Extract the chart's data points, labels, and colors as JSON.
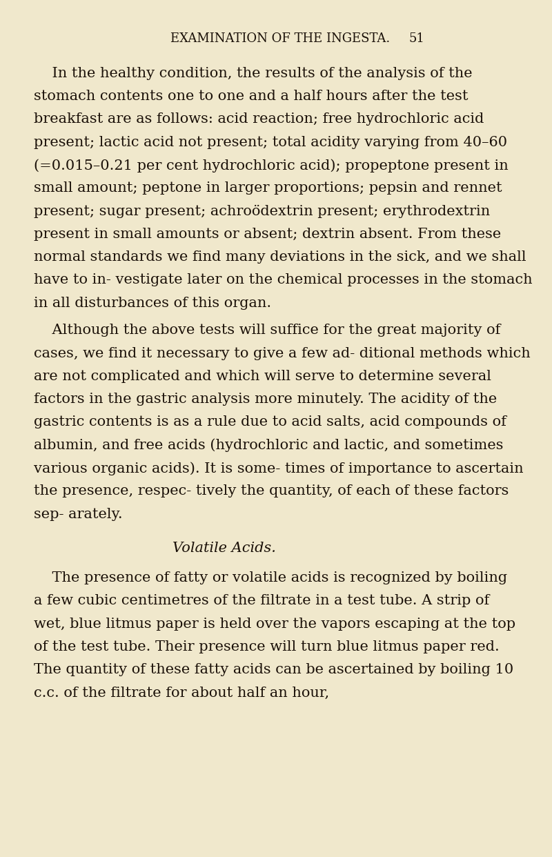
{
  "background_color": "#f0e8cc",
  "header_text": "EXAMINATION OF THE INGESTA.",
  "page_number": "51",
  "header_fontsize": 13,
  "body_fontsize": 15.0,
  "section_title": "Volatile Acids.",
  "paragraphs": [
    "    In the healthy condition, the results of the analysis of the stomach contents one to one and a half hours after the test breakfast are as follows: acid reaction; free hydrochloric acid present; lactic acid not present; total acidity varying from 40–60 (=0.015–0.21 per cent hydrochloric acid); propeptone present in small amount; peptone in larger proportions; pepsin and rennet present; sugar present; achroödextrin present; erythrodextrin present in small amounts or absent; dextrin absent. From these normal standards we find many deviations in the sick, and we shall have to in- vestigate later on the chemical processes in the stomach in all disturbances of this organ.",
    "    Although the above tests will suffice for the great majority of cases, we find it necessary to give a few ad- ditional methods which are not complicated and which will serve to determine several factors in the gastric analysis more minutely. The acidity of the gastric contents is as a rule due to acid salts, acid compounds of albumin, and free acids (hydrochloric and lactic, and sometimes various organic acids). It is some- times of importance to ascertain the presence, respec- tively the quantity, of each of these factors sep- arately.",
    "    The presence of fatty or volatile acids is recognized by boiling a few cubic centimetres of the filtrate in a test tube. A strip of wet, blue litmus paper is held over the vapors escaping at the top of the test tube. Their presence will turn blue litmus paper red. The quantity of these fatty acids can be ascertained by boiling 10 c.c. of the filtrate for about half an hour,"
  ],
  "text_color": "#1a1008",
  "header_color": "#1a1008"
}
